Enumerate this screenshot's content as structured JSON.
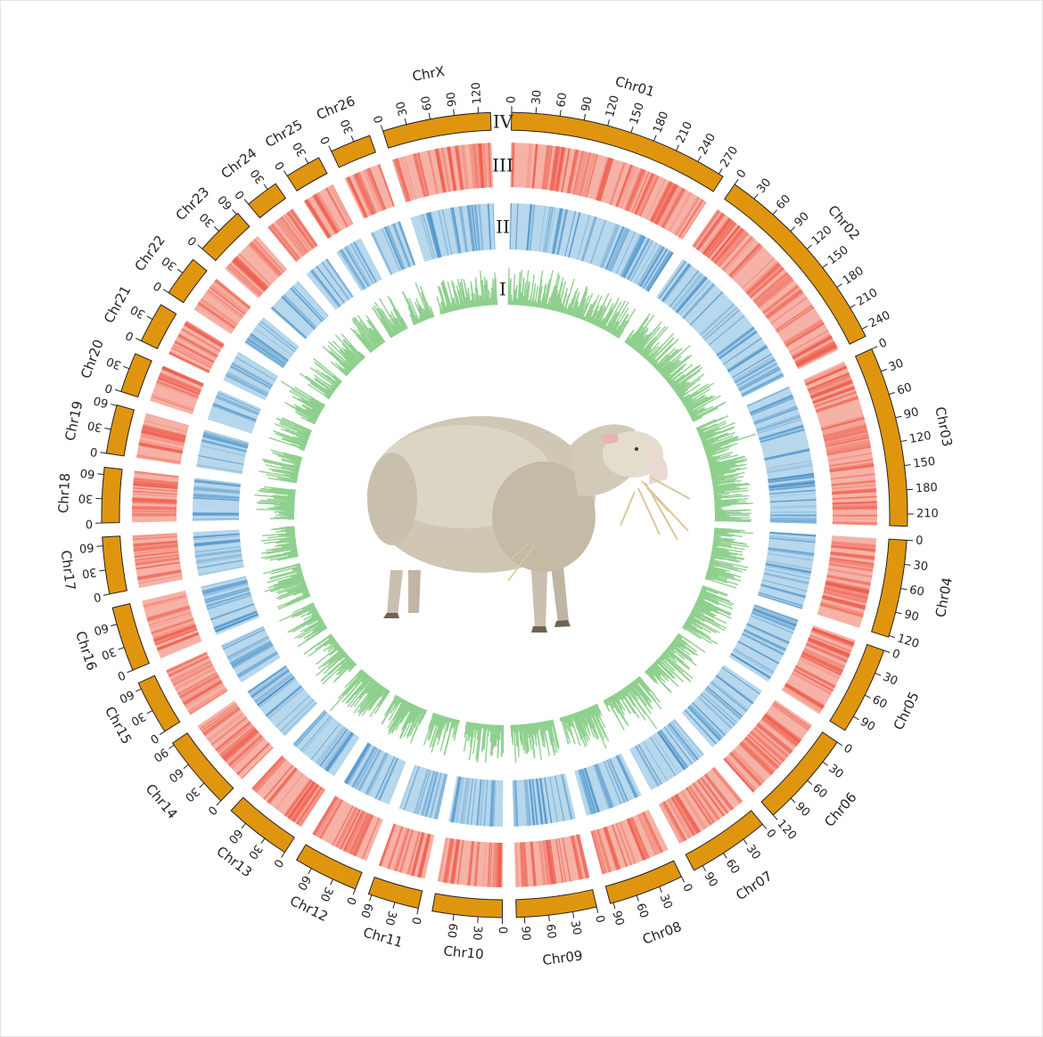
{
  "figure": {
    "track_labels": [
      "IV",
      "III",
      "II",
      "I"
    ],
    "colors": {
      "ideogram": "#e0950f",
      "ideogram_border": "#222222",
      "track_iii": "#f6b2a6",
      "track_iii_dark": "#ee5a4a",
      "track_ii": "#b7d7ec",
      "track_ii_dark": "#4a91c8",
      "track_i": "#8fd08f"
    },
    "center_image": "sheep"
  },
  "chart_data": {
    "type": "circos",
    "chromosomes": [
      {
        "name": "Chr01",
        "length": 276,
        "ticks": [
          0,
          30,
          60,
          90,
          120,
          150,
          180,
          210,
          240,
          270
        ]
      },
      {
        "name": "Chr02",
        "length": 250,
        "ticks": [
          0,
          30,
          60,
          90,
          120,
          150,
          180,
          210,
          240
        ]
      },
      {
        "name": "Chr03",
        "length": 225,
        "ticks": [
          0,
          30,
          60,
          90,
          120,
          150,
          180,
          210
        ]
      },
      {
        "name": "Chr04",
        "length": 122,
        "ticks": [
          0,
          30,
          60,
          90,
          120
        ]
      },
      {
        "name": "Chr05",
        "length": 110,
        "ticks": [
          0,
          30,
          60,
          90
        ]
      },
      {
        "name": "Chr06",
        "length": 120,
        "ticks": [
          0,
          30,
          60,
          90,
          120
        ]
      },
      {
        "name": "Chr07",
        "length": 102,
        "ticks": [
          0,
          30,
          60,
          90
        ]
      },
      {
        "name": "Chr08",
        "length": 94,
        "ticks": [
          0,
          30,
          60,
          90
        ]
      },
      {
        "name": "Chr09",
        "length": 100,
        "ticks": [
          0,
          30,
          60,
          90
        ]
      },
      {
        "name": "Chr10",
        "length": 87,
        "ticks": [
          0,
          30,
          60
        ]
      },
      {
        "name": "Chr11",
        "length": 64,
        "ticks": [
          0,
          30,
          60
        ]
      },
      {
        "name": "Chr12",
        "length": 81,
        "ticks": [
          0,
          30,
          60
        ]
      },
      {
        "name": "Chr13",
        "length": 84,
        "ticks": [
          0,
          30,
          60
        ]
      },
      {
        "name": "Chr14",
        "length": 93,
        "ticks": [
          0,
          30,
          60,
          90
        ]
      },
      {
        "name": "Chr15",
        "length": 68,
        "ticks": [
          0,
          30,
          60
        ]
      },
      {
        "name": "Chr16",
        "length": 81,
        "ticks": [
          0,
          30,
          60
        ]
      },
      {
        "name": "Chr17",
        "length": 71,
        "ticks": [
          0,
          30,
          60
        ]
      },
      {
        "name": "Chr18",
        "length": 69,
        "ticks": [
          0,
          30,
          60
        ]
      },
      {
        "name": "Chr19",
        "length": 61,
        "ticks": [
          0,
          30,
          60
        ]
      },
      {
        "name": "Chr20",
        "length": 50,
        "ticks": [
          0,
          30
        ]
      },
      {
        "name": "Chr21",
        "length": 51,
        "ticks": [
          0,
          30
        ]
      },
      {
        "name": "Chr22",
        "length": 51,
        "ticks": [
          0,
          30
        ]
      },
      {
        "name": "Chr23",
        "length": 62,
        "ticks": [
          0,
          30,
          60
        ]
      },
      {
        "name": "Chr24",
        "length": 42,
        "ticks": [
          0,
          30
        ]
      },
      {
        "name": "Chr25",
        "length": 45,
        "ticks": [
          0,
          30
        ]
      },
      {
        "name": "Chr26",
        "length": 51,
        "ticks": [
          0,
          30
        ]
      },
      {
        "name": "ChrX",
        "length": 135,
        "ticks": [
          0,
          30,
          60,
          90,
          120
        ]
      }
    ]
  }
}
